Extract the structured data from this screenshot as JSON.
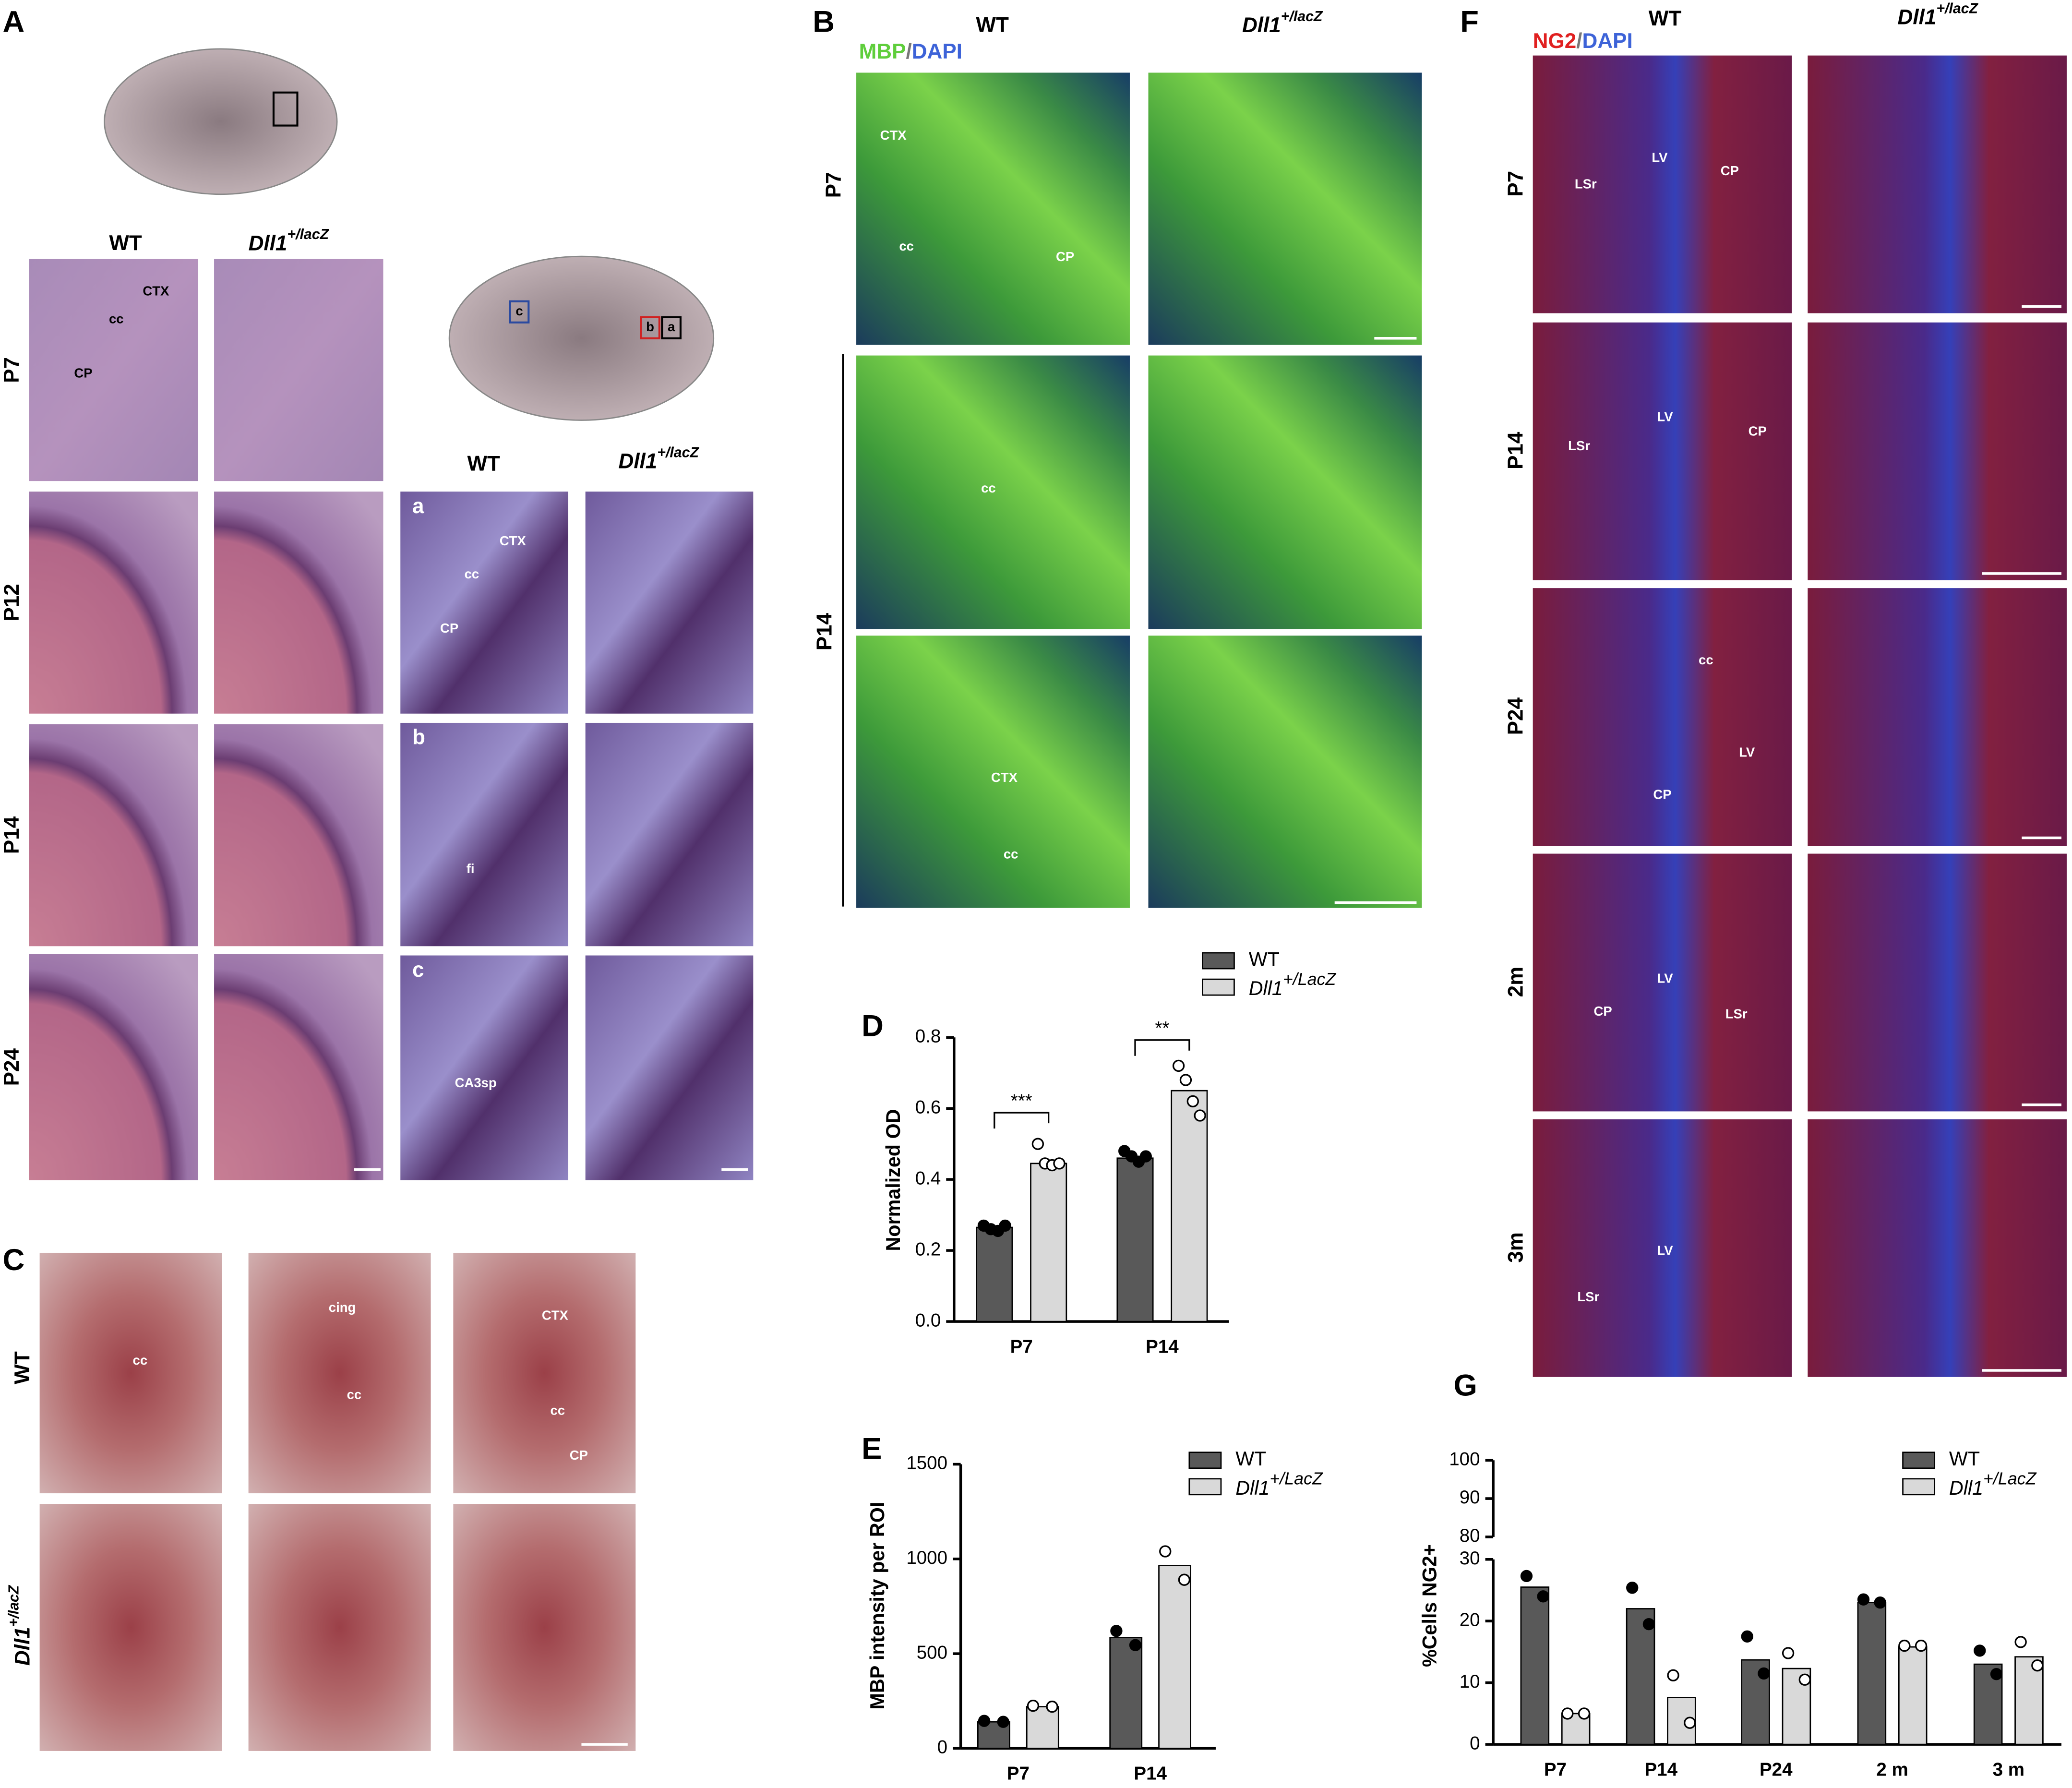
{
  "figure": {
    "A": {
      "letter": "A",
      "wt": "WT",
      "mut": "Dll1",
      "mut_sup": "+/lacZ",
      "rows": [
        "P7",
        "P12",
        "P14",
        "P24"
      ],
      "labels": [
        "CTX",
        "cc",
        "CP"
      ],
      "atlas_boxes": [
        "c",
        "b",
        "a"
      ],
      "inset_wt": "WT",
      "inset_mut": "Dll1",
      "inset_mut_sup": "+/lacZ",
      "insets": [
        "a",
        "b",
        "c"
      ],
      "inset_labels": [
        "CTX",
        "cc",
        "CP",
        "fi",
        "CA3sp"
      ]
    },
    "B": {
      "letter": "B",
      "wt": "WT",
      "mut": "Dll1",
      "mut_sup": "+/lacZ",
      "stain": [
        "MBP",
        "/",
        "DAPI"
      ],
      "rows": [
        "P7",
        "P14"
      ],
      "labels": [
        "CTX",
        "cc",
        "CP",
        "cc",
        "CTX",
        "cc"
      ]
    },
    "C": {
      "letter": "C",
      "rows": [
        "WT",
        "Dll1"
      ],
      "row_sup": "+/lacZ",
      "labels": [
        "cc",
        "cing",
        "cc",
        "CTX",
        "cc",
        "CP"
      ]
    },
    "F": {
      "letter": "F",
      "wt": "WT",
      "mut": "Dll1",
      "mut_sup": "+/lacZ",
      "stain": [
        "NG2",
        "/",
        "DAPI"
      ],
      "rows": [
        "P7",
        "P14",
        "P24",
        "2m",
        "3m"
      ],
      "labels": [
        "LSr",
        "LV",
        "CP",
        "LSr",
        "LV",
        "CP",
        "cc",
        "LV",
        "CP",
        "LV",
        "CP",
        "LSr",
        "LV",
        "LSr"
      ]
    }
  },
  "chart_data": [
    {
      "type": "bar",
      "letter": "D",
      "y_label": "Normalized OD",
      "categories": [
        "P7",
        "P14"
      ],
      "series": [
        {
          "name": "WT",
          "color": "#595959",
          "values": [
            0.265,
            0.46
          ],
          "points": [
            [
              0.27,
              0.26,
              0.255,
              0.27
            ],
            [
              0.48,
              0.465,
              0.45,
              0.465
            ]
          ]
        },
        {
          "name": "Dll1",
          "name_sup": "+/LacZ",
          "color": "#d9d9d9",
          "values": [
            0.445,
            0.65
          ],
          "points": [
            [
              0.5,
              0.445,
              0.44,
              0.445
            ],
            [
              0.72,
              0.68,
              0.62,
              0.58
            ]
          ]
        }
      ],
      "ylim": [
        0,
        0.8
      ],
      "yticks": [
        {
          "value": 0,
          "label": "0.0"
        },
        0.2,
        0.4,
        0.6,
        0.8
      ],
      "significance": [
        "***",
        "**"
      ]
    },
    {
      "type": "bar",
      "letter": "E",
      "y_label": "MBP intensity per ROI",
      "categories": [
        "P7",
        "P14"
      ],
      "series": [
        {
          "name": "WT",
          "color": "#595959",
          "values": [
            140,
            585
          ],
          "points": [
            [
              145,
              140
            ],
            [
              620,
              545
            ]
          ]
        },
        {
          "name": "Dll1",
          "name_sup": "+/LacZ",
          "color": "#d9d9d9",
          "values": [
            220,
            965
          ],
          "points": [
            [
              225,
              220
            ],
            [
              1040,
              890
            ]
          ]
        }
      ],
      "ylim": [
        0,
        1500
      ],
      "yticks": [
        0,
        500,
        1000,
        1500
      ]
    },
    {
      "type": "bar",
      "letter": "G",
      "y_label": "%Cells NG2+",
      "categories": [
        "P7",
        "P14",
        "P24",
        "2 m",
        "3 m"
      ],
      "series": [
        {
          "name": "WT",
          "color": "#595959",
          "values": [
            25.5,
            22,
            13.7,
            23,
            13
          ],
          "points": [
            [
              27.3,
              24
            ],
            [
              25.4,
              19.5
            ],
            [
              17.5,
              11.5
            ],
            [
              23.5,
              23
            ],
            [
              15.2,
              11.4
            ]
          ]
        },
        {
          "name": "Dll1",
          "name_sup": "+/LacZ",
          "color": "#d9d9d9",
          "values": [
            5,
            7.6,
            12.3,
            15.8,
            14.2
          ],
          "points": [
            [
              5,
              5
            ],
            [
              11.2,
              3.5
            ],
            [
              14.8,
              10.5
            ],
            [
              16,
              16
            ],
            [
              16.6,
              12.8
            ]
          ]
        }
      ],
      "ylim": [
        0,
        30
      ],
      "yticks": [
        0,
        10,
        20,
        30
      ],
      "ylim_upper": [
        80,
        100
      ],
      "yticks_upper": [
        80,
        90,
        100
      ]
    }
  ]
}
